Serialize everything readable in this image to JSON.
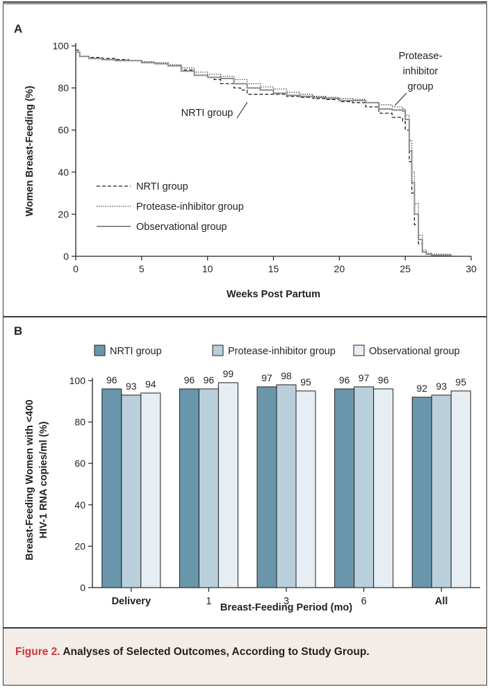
{
  "caption": {
    "figure_number": "Figure 2.",
    "text": " Analyses of Selected Outcomes, According to Study Group."
  },
  "chart_data": [
    {
      "type": "line",
      "panel": "A",
      "xlabel": "Weeks Post Partum",
      "ylabel": "Women Breast-Feeding (%)",
      "xlim": [
        0,
        30
      ],
      "ylim": [
        0,
        100
      ],
      "xticks": [
        0,
        5,
        10,
        15,
        20,
        25,
        30
      ],
      "yticks": [
        0,
        20,
        40,
        60,
        80,
        100
      ],
      "legend_position": "lower-left",
      "annotations": [
        {
          "text_lines": [
            "Protease-",
            "inhibitor",
            "group"
          ],
          "target_series": "Protease-inhibitor group"
        },
        {
          "text_lines": [
            "NRTI group"
          ],
          "target_series": "NRTI group"
        }
      ],
      "series": [
        {
          "name": "NRTI group",
          "style": "dashed",
          "color": "#231f20",
          "x": [
            0,
            0.3,
            1,
            2,
            3,
            4,
            5,
            6,
            7,
            8,
            9,
            10,
            10.5,
            11,
            12,
            12.5,
            13,
            14,
            15,
            16,
            17,
            18,
            19,
            20,
            21,
            22,
            23,
            24,
            24.8,
            25,
            25.3,
            25.5,
            25.7,
            26,
            26.3,
            26.6,
            27,
            28.5
          ],
          "y": [
            98,
            95,
            94.5,
            94,
            93.5,
            93,
            92,
            91.5,
            90.5,
            88.5,
            86,
            85,
            84,
            82,
            80,
            79,
            77,
            77,
            77,
            76,
            75.5,
            75,
            74.5,
            73.5,
            73,
            71,
            68,
            66,
            64,
            60,
            45,
            30,
            15,
            6,
            2,
            1,
            0.5,
            0.5
          ]
        },
        {
          "name": "Protease-inhibitor group",
          "style": "dotted",
          "color": "#231f20",
          "x": [
            0,
            0.3,
            1,
            2,
            3,
            4,
            5,
            6,
            7,
            8,
            9,
            10,
            11,
            12,
            13,
            14,
            15,
            16,
            17,
            18,
            19,
            20,
            21,
            22,
            23,
            24,
            24.8,
            25,
            25.3,
            25.5,
            25.7,
            26,
            26.3,
            26.6,
            27,
            28.5
          ],
          "y": [
            97,
            95,
            94,
            93.5,
            93,
            93,
            92.5,
            92,
            91,
            89.5,
            87.5,
            86.5,
            85.5,
            84,
            82,
            80.5,
            79.5,
            78,
            77,
            76,
            75.5,
            75,
            74.5,
            73,
            72,
            71,
            70,
            67,
            55,
            40,
            25,
            10,
            3,
            1.5,
            1,
            0.5
          ]
        },
        {
          "name": "Observational group",
          "style": "solid",
          "color": "#8c8c8c",
          "x": [
            0,
            0.3,
            1,
            2,
            3,
            4,
            5,
            6,
            7,
            8,
            9,
            10,
            11,
            12,
            13,
            14,
            15,
            16,
            17,
            18,
            19,
            20,
            21,
            22,
            23,
            24,
            24.8,
            25,
            25.3,
            25.5,
            25.7,
            26,
            26.3,
            26.6,
            27,
            28.5
          ],
          "y": [
            97,
            95,
            94,
            93.5,
            93,
            93,
            92,
            91.5,
            90.5,
            88,
            86,
            85,
            84.5,
            82,
            80,
            79,
            77.5,
            76.5,
            76,
            75.5,
            75,
            74,
            74,
            73,
            70,
            69.5,
            69,
            65,
            50,
            35,
            20,
            8,
            2,
            1,
            0.5,
            0.5
          ]
        }
      ]
    },
    {
      "type": "bar",
      "panel": "B",
      "xlabel": "Breast-Feeding Period (mo)",
      "ylabel_lines": [
        "Breast-Feeding Women with <400",
        "HIV-1 RNA copies/ml (%)"
      ],
      "ylim": [
        0,
        100
      ],
      "yticks": [
        0,
        20,
        40,
        60,
        80,
        100
      ],
      "legend_position": "top",
      "categories": [
        "Delivery",
        "1",
        "3",
        "6",
        "All"
      ],
      "series": [
        {
          "name": "NRTI group",
          "color": "#6a96ab",
          "values": [
            96,
            96,
            97,
            96,
            92
          ]
        },
        {
          "name": "Protease-inhibitor group",
          "color": "#b9cfdc",
          "values": [
            93,
            96,
            98,
            97,
            93
          ]
        },
        {
          "name": "Observational group",
          "color": "#e6eef3",
          "values": [
            94,
            99,
            95,
            96,
            95
          ]
        }
      ]
    }
  ],
  "panel_labels": {
    "a": "A",
    "b": "B"
  }
}
